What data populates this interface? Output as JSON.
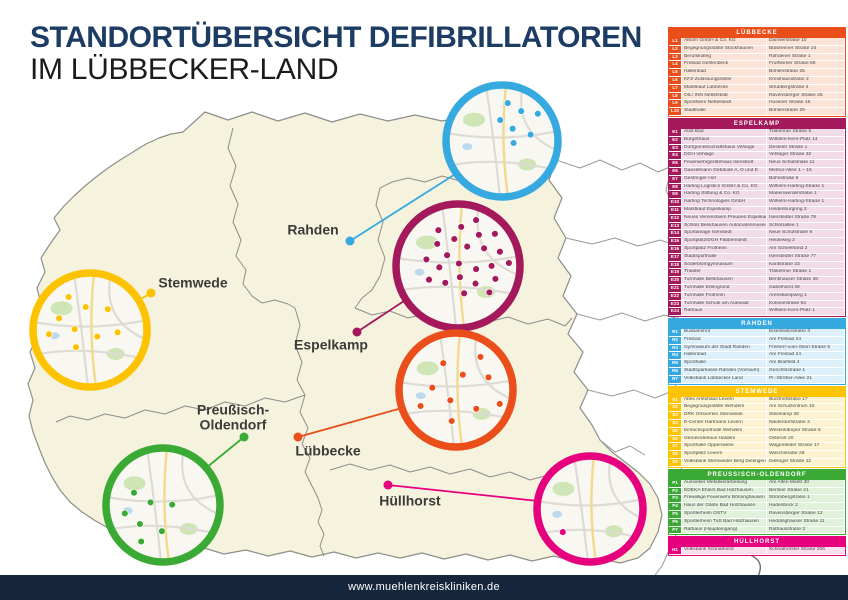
{
  "title": {
    "line1": "STANDORTÜBERSICHT DEFIBRILLATOREN",
    "line2": "IM LÜBBECKER-LAND"
  },
  "footer": {
    "url": "www.muehlenkreiskliniken.de"
  },
  "colors": {
    "navy_footer": "#16263c",
    "title_blue": "#1d3c63",
    "map_land": "#f5f2de",
    "map_border": "#8e8e8a",
    "map_border_outer": "#9a9a96",
    "inset_bg": "#f8f7f2",
    "inset_road": "#dddbd4",
    "inset_road_yellow": "#f2d98c",
    "inset_green": "#cfe5b5",
    "inset_water": "#bcd9ee"
  },
  "legend": {
    "sections": [
      {
        "key": "luebbecke",
        "title": "LÜBBECKE",
        "map_label": "Lübbecke",
        "color": "#e94e1b",
        "tint": "#fbe4d7",
        "rows": [
          [
            "L1",
            "Alborn GmbH & Co. KG",
            "Daimlerstraße 10"
          ],
          [
            "L2",
            "Begegnungsstätte Stockhausen",
            "Blasheimer Straße 24"
          ],
          [
            "L3",
            "Berufskolleg",
            "Rahdener Straße 1"
          ],
          [
            "L4",
            "Freibad Gehlenbeck",
            "Frotheimer Straße 59"
          ],
          [
            "L5",
            "Hallenbad",
            "Bohlenstraße 25"
          ],
          [
            "L6",
            "KFZ-Zulassungsstelle",
            "Kreishausstraße 2"
          ],
          [
            "L7",
            "Marktkauf Lübbecke",
            "Strubbergstraße 4"
          ],
          [
            "L8",
            "OIL! INN Nettelstedt",
            "Ravensberger Straße 25"
          ],
          [
            "L9",
            "Sportheim Nettelstedt",
            "Husener Straße 16"
          ],
          [
            "L10",
            "Stadthalle",
            "Bohlenstraße 29"
          ]
        ]
      },
      {
        "key": "espelkamp",
        "title": "ESPELKAMP",
        "map_label": "Espelkamp",
        "color": "#a3195b",
        "tint": "#f2dce8",
        "rows": [
          [
            "E1",
            "Atoll Bad",
            "Trakehner Straße 5"
          ],
          [
            "E2",
            "Bürgerhaus",
            "Wilhelm-Kern-Platz 14"
          ],
          [
            "E3",
            "Dorfgemeinschaftshaus Vehlage",
            "Desteler Straße 1"
          ],
          [
            "E4",
            "DGH Vehlage",
            "Vehlager Straße 32"
          ],
          [
            "E5",
            "Feuerwehrgerätehaus Isenstedt",
            "Neue Schulstraße 11"
          ],
          [
            "E6",
            "Gauselmann Gebäude A, D und E",
            "Merkur-Allee 1 – 15"
          ],
          [
            "E7",
            "Gestringer Hof",
            "Bahnstraße 6"
          ],
          [
            "E8",
            "Harting Logistics GmbH & Co. KG",
            "Wilhelm-Harting-Straße 1"
          ],
          [
            "E9",
            "Harting Stiftung & Co. KG",
            "Marienwerderstraße 1"
          ],
          [
            "E10",
            "Harting Technologies GmbH",
            "Wilhelm-Harting-Straße 1"
          ],
          [
            "E11",
            "Marktkauf Espelkamp",
            "Hindenburgring 3"
          ],
          [
            "E12",
            "Neues Vereinsheim Preußen Espelkamp",
            "Isenstedter Straße 78"
          ],
          [
            "E13",
            "Schloß Benkhausen Automatenmuseum",
            "Schloßallee 1"
          ],
          [
            "E14",
            "Sportanlage Isenstedt",
            "Neue Schulstraße 6"
          ],
          [
            "E15",
            "Sportplatz/DGH Fabbenstedt",
            "Heideweg 2"
          ],
          [
            "E16",
            "Sportplatz Frotheim",
            "Am Schiefeland 2"
          ],
          [
            "E17",
            "Stadtsporthalle",
            "Isenstedter Straße 77"
          ],
          [
            "E18",
            "Söderblomgymnasium",
            "Kantstraße 33"
          ],
          [
            "E19",
            "Theater",
            "Trakehner Straße 1"
          ],
          [
            "E20",
            "Turnhalle Benkhausen",
            "Benkhauser Straße 36"
          ],
          [
            "E21",
            "Turnhalle Erlengrund",
            "Gabelhorst 38"
          ],
          [
            "E22",
            "Turnhalle Frotheim",
            "Arenskampweg 1"
          ],
          [
            "E23",
            "Turnhalle Schule am Auewald",
            "Koloniestraße 63"
          ],
          [
            "E24",
            "Rathaus",
            "Wilhelm-Kern-Platz 1"
          ]
        ]
      },
      {
        "key": "rahden",
        "title": "RAHDEN",
        "map_label": "Rahden",
        "color": "#36a9e1",
        "tint": "#def0fa",
        "rows": [
          [
            "R1",
            "Busbahnhof",
            "Eisenbahnstraße 3"
          ],
          [
            "R2",
            "Freibad",
            "Am Freibad 24"
          ],
          [
            "R3",
            "Gymnasium der Stadt Rahden",
            "Freiherr-vom-Stein-Straße 5"
          ],
          [
            "R4",
            "Hallenbad",
            "Am Freibad 24"
          ],
          [
            "R5",
            "Sporthalle",
            "Am Brullfeld 4"
          ],
          [
            "R6",
            "Stadtsparkasse Rahden (Vorraum)",
            "Gerichtsstraße 1"
          ],
          [
            "R7",
            "Volksbank Lübbecker Land",
            "Pr.-Ströher-Allee 21"
          ]
        ]
      },
      {
        "key": "stemwede",
        "title": "STEMWEDE",
        "map_label": "Stemwede",
        "color": "#fdc300",
        "tint": "#fdf3d0",
        "rows": [
          [
            "S1",
            "Altes Amtshaus Levern",
            "Buchhofstraße 17"
          ],
          [
            "S2",
            "Begegnungsstätte Wehdem",
            "Am Schulzentrum 10"
          ],
          [
            "S3",
            "DRK Ortsverein Stemwede",
            "Steinkamp 28"
          ],
          [
            "S4",
            "E-Center Hartmann Levern",
            "Niederdorfstraße 3"
          ],
          [
            "S5",
            "Einfachsporthalle Wehdem",
            "Wesenkämper Straße 5"
          ],
          [
            "S6",
            "Gemeindehaus Haldem",
            "Osterort 20"
          ],
          [
            "S7",
            "Sporthalle Oppenwehe",
            "Wagenfelder Straße 17"
          ],
          [
            "S8",
            "Sportplatz Levern",
            "Waschstraße 28"
          ],
          [
            "S9",
            "Volksbank Stemweder Berg Dielingen",
            "Dielinger Straße 12"
          ]
        ]
      },
      {
        "key": "preussisch_oldendorf",
        "title": "PREUSSISCH-OLDENDORF",
        "map_label": "Preußisch-Oldendorf",
        "color": "#3aaa35",
        "tint": "#e1f1db",
        "rows": [
          [
            "P1",
            "Aussieker Metallverarbeitung",
            "Am Alten Markt 30"
          ],
          [
            "P2",
            "EDEKA Ehlers Bad Holzhausen",
            "Berliner Straße 21"
          ],
          [
            "P3",
            "Freiwillige Feuerwehr Börninghausen",
            "Strombergstraße 1"
          ],
          [
            "P4",
            "Haus der Gäste Bad Holzhausen",
            "Hudenbeck 2"
          ],
          [
            "P5",
            "Sportlerheim OSTV",
            "Ravensberger Straße 12"
          ],
          [
            "P6",
            "Sportlerheim TuS Bad Holzhausen",
            "Heddinghauser Straße 11"
          ],
          [
            "P7",
            "Rathaus (Haupteingang)",
            "Rathausstraße 3"
          ]
        ]
      },
      {
        "key": "huellhorst",
        "title": "HÜLLHORST",
        "map_label": "Hüllhorst",
        "color": "#e6007e",
        "tint": "#fbdeee",
        "rows": [
          [
            "H1",
            "Volksbank Schnathorst",
            "Schnathorster Straße 206"
          ]
        ]
      }
    ]
  }
}
